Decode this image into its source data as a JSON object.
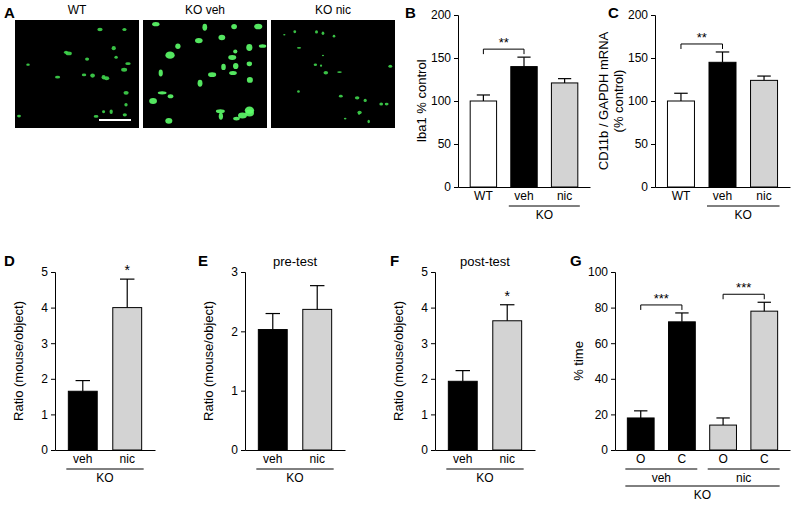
{
  "chart_data": [
    {
      "type": "image",
      "panel": "A",
      "labels": [
        "WT",
        "KO veh",
        "KO nic"
      ]
    },
    {
      "type": "bar",
      "panel": "B",
      "y_label": "Iba1 % control",
      "categories": [
        "WT",
        "veh",
        "nic"
      ],
      "group_labels": [
        [
          null,
          "KO",
          "KO"
        ]
      ],
      "values": [
        100,
        140,
        121
      ],
      "errors": [
        7,
        11,
        5
      ],
      "colors": [
        "#ffffff",
        "#000000",
        "#d3d3d3"
      ],
      "ylim": [
        0,
        200
      ],
      "yticks": [
        0,
        50,
        100,
        150,
        200
      ],
      "annotations": [
        {
          "text": "**",
          "between": [
            0,
            1
          ]
        }
      ]
    },
    {
      "type": "bar",
      "panel": "C",
      "y_label": [
        "CD11b / GAPDH mRNA",
        "(% control)"
      ],
      "categories": [
        "WT",
        "veh",
        "nic"
      ],
      "group_labels": [
        [
          null,
          "KO",
          "KO"
        ]
      ],
      "values": [
        100,
        145,
        124
      ],
      "errors": [
        9,
        12,
        5
      ],
      "colors": [
        "#ffffff",
        "#000000",
        "#d3d3d3"
      ],
      "ylim": [
        0,
        200
      ],
      "yticks": [
        0,
        50,
        100,
        150,
        200
      ],
      "annotations": [
        {
          "text": "**",
          "between": [
            0,
            1
          ]
        }
      ]
    },
    {
      "type": "bar",
      "panel": "D",
      "y_label": "Ratio (mouse/object)",
      "categories": [
        "veh",
        "nic"
      ],
      "group_labels": [
        [
          "KO",
          "KO"
        ]
      ],
      "values": [
        1.65,
        4.0
      ],
      "errors": [
        0.3,
        0.8
      ],
      "colors": [
        "#000000",
        "#d3d3d3"
      ],
      "ylim": [
        0,
        5
      ],
      "yticks": [
        0,
        1,
        2,
        3,
        4,
        5
      ],
      "annotations": [
        {
          "text": "*",
          "between": [
            1
          ]
        }
      ]
    },
    {
      "type": "bar",
      "panel": "E",
      "title": "pre-test",
      "y_label": "Ratio (mouse/object)",
      "categories": [
        "veh",
        "nic"
      ],
      "group_labels": [
        [
          "KO",
          "KO"
        ]
      ],
      "values": [
        2.03,
        2.37
      ],
      "errors": [
        0.27,
        0.4
      ],
      "colors": [
        "#000000",
        "#d3d3d3"
      ],
      "ylim": [
        0,
        3
      ],
      "yticks": [
        0,
        1,
        2,
        3
      ]
    },
    {
      "type": "bar",
      "panel": "F",
      "title": "post-test",
      "y_label": "Ratio (mouse/object)",
      "categories": [
        "veh",
        "nic"
      ],
      "group_labels": [
        [
          "KO",
          "KO"
        ]
      ],
      "values": [
        1.93,
        3.63
      ],
      "errors": [
        0.3,
        0.45
      ],
      "colors": [
        "#000000",
        "#d3d3d3"
      ],
      "ylim": [
        0,
        5
      ],
      "yticks": [
        0,
        1,
        2,
        3,
        4,
        5
      ],
      "annotations": [
        {
          "text": "*",
          "between": [
            1
          ]
        }
      ]
    },
    {
      "type": "bar",
      "panel": "G",
      "y_label": "% time",
      "categories": [
        "O",
        "C",
        "O",
        "C"
      ],
      "group_labels": [
        [
          "veh",
          "veh",
          "nic",
          "nic"
        ],
        [
          "KO",
          "KO",
          "KO",
          "KO"
        ]
      ],
      "values": [
        18,
        72,
        14,
        78
      ],
      "errors": [
        4,
        5,
        4,
        5
      ],
      "colors": [
        "#000000",
        "#000000",
        "#d3d3d3",
        "#d3d3d3"
      ],
      "ylim": [
        0,
        100
      ],
      "yticks": [
        0,
        20,
        40,
        60,
        80,
        100
      ],
      "annotations": [
        {
          "text": "***",
          "between": [
            0,
            1
          ]
        },
        {
          "text": "***",
          "between": [
            2,
            3
          ]
        }
      ]
    }
  ]
}
